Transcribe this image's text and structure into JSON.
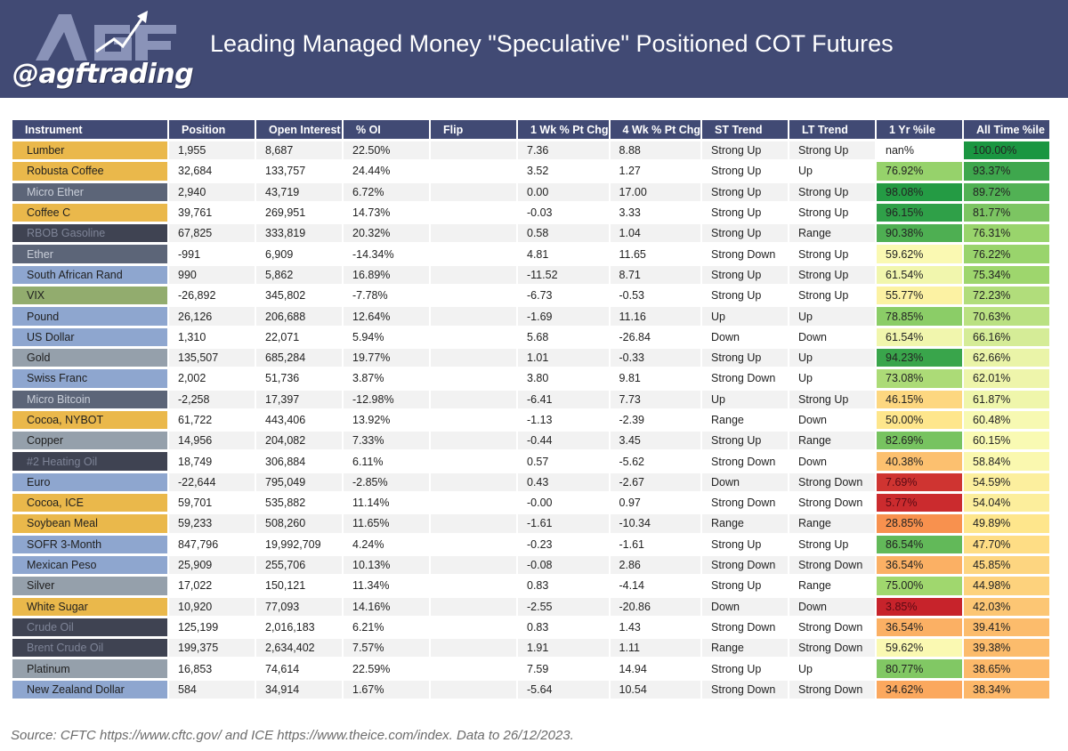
{
  "header": {
    "logo_text": "@agftrading",
    "logo_letters": "AGF",
    "title": "Leading Managed Money \"Speculative\" Positioned COT Futures"
  },
  "colors": {
    "header_bg": "#414a74",
    "category": {
      "orange": "#eab84b",
      "slate": "#5c6578",
      "dark": "#3f4352",
      "blue": "#8ea6cf",
      "green": "#92ac6e",
      "gray": "#95a0ab"
    }
  },
  "table": {
    "columns": [
      "Instrument",
      "Position",
      "Open Interest",
      "% OI",
      "Flip",
      "1 Wk % Pt Chg",
      "4 Wk % Pt Chg",
      "ST Trend",
      "LT Trend",
      "1 Yr %ile",
      "All Time %ile"
    ],
    "rows": [
      {
        "instrument": "Lumber",
        "cat": "orange",
        "position": "1,955",
        "oi": "8,687",
        "pct_oi": "22.50%",
        "flip": "",
        "wk1": "7.36",
        "wk4": "8.88",
        "st": "Strong Up",
        "lt": "Strong Up",
        "yr": "nan%",
        "at": "100.00%"
      },
      {
        "instrument": "Robusta Coffee",
        "cat": "orange",
        "position": "32,684",
        "oi": "133,757",
        "pct_oi": "24.44%",
        "flip": "",
        "wk1": "3.52",
        "wk4": "1.27",
        "st": "Strong Up",
        "lt": "Up",
        "yr": "76.92%",
        "at": "93.37%"
      },
      {
        "instrument": "Micro Ether",
        "cat": "slate",
        "position": "2,940",
        "oi": "43,719",
        "pct_oi": "6.72%",
        "flip": "",
        "wk1": "0.00",
        "wk4": "17.00",
        "st": "Strong Up",
        "lt": "Strong Up",
        "yr": "98.08%",
        "at": "89.72%"
      },
      {
        "instrument": "Coffee C",
        "cat": "orange",
        "position": "39,761",
        "oi": "269,951",
        "pct_oi": "14.73%",
        "flip": "",
        "wk1": "-0.03",
        "wk4": "3.33",
        "st": "Strong Up",
        "lt": "Strong Up",
        "yr": "96.15%",
        "at": "81.77%"
      },
      {
        "instrument": "RBOB Gasoline",
        "cat": "dark",
        "position": "67,825",
        "oi": "333,819",
        "pct_oi": "20.32%",
        "flip": "",
        "wk1": "0.58",
        "wk4": "1.04",
        "st": "Strong Up",
        "lt": "Range",
        "yr": "90.38%",
        "at": "76.31%"
      },
      {
        "instrument": "Ether",
        "cat": "slate",
        "position": "-991",
        "oi": "6,909",
        "pct_oi": "-14.34%",
        "flip": "",
        "wk1": "4.81",
        "wk4": "11.65",
        "st": "Strong Down",
        "lt": "Strong Up",
        "yr": "59.62%",
        "at": "76.22%"
      },
      {
        "instrument": "South African Rand",
        "cat": "blue",
        "position": "990",
        "oi": "5,862",
        "pct_oi": "16.89%",
        "flip": "",
        "wk1": "-11.52",
        "wk4": "8.71",
        "st": "Strong Up",
        "lt": "Strong Up",
        "yr": "61.54%",
        "at": "75.34%"
      },
      {
        "instrument": "VIX",
        "cat": "green",
        "position": "-26,892",
        "oi": "345,802",
        "pct_oi": "-7.78%",
        "flip": "",
        "wk1": "-6.73",
        "wk4": "-0.53",
        "st": "Strong Up",
        "lt": "Strong Up",
        "yr": "55.77%",
        "at": "72.23%"
      },
      {
        "instrument": "Pound",
        "cat": "blue",
        "position": "26,126",
        "oi": "206,688",
        "pct_oi": "12.64%",
        "flip": "",
        "wk1": "-1.69",
        "wk4": "11.16",
        "st": "Up",
        "lt": "Up",
        "yr": "78.85%",
        "at": "70.63%"
      },
      {
        "instrument": "US Dollar",
        "cat": "blue",
        "position": "1,310",
        "oi": "22,071",
        "pct_oi": "5.94%",
        "flip": "",
        "wk1": "5.68",
        "wk4": "-26.84",
        "st": "Down",
        "lt": "Down",
        "yr": "61.54%",
        "at": "66.16%"
      },
      {
        "instrument": "Gold",
        "cat": "gray",
        "position": "135,507",
        "oi": "685,284",
        "pct_oi": "19.77%",
        "flip": "",
        "wk1": "1.01",
        "wk4": "-0.33",
        "st": "Strong Up",
        "lt": "Up",
        "yr": "94.23%",
        "at": "62.66%"
      },
      {
        "instrument": "Swiss Franc",
        "cat": "blue",
        "position": "2,002",
        "oi": "51,736",
        "pct_oi": "3.87%",
        "flip": "",
        "wk1": "3.80",
        "wk4": "9.81",
        "st": "Strong Down",
        "lt": "Up",
        "yr": "73.08%",
        "at": "62.01%"
      },
      {
        "instrument": "Micro Bitcoin",
        "cat": "slate",
        "position": "-2,258",
        "oi": "17,397",
        "pct_oi": "-12.98%",
        "flip": "",
        "wk1": "-6.41",
        "wk4": "7.73",
        "st": "Up",
        "lt": "Strong Up",
        "yr": "46.15%",
        "at": "61.87%"
      },
      {
        "instrument": "Cocoa, NYBOT",
        "cat": "orange",
        "position": "61,722",
        "oi": "443,406",
        "pct_oi": "13.92%",
        "flip": "",
        "wk1": "-1.13",
        "wk4": "-2.39",
        "st": "Range",
        "lt": "Down",
        "yr": "50.00%",
        "at": "60.48%"
      },
      {
        "instrument": "Copper",
        "cat": "gray",
        "position": "14,956",
        "oi": "204,082",
        "pct_oi": "7.33%",
        "flip": "",
        "wk1": "-0.44",
        "wk4": "3.45",
        "st": "Strong Up",
        "lt": "Range",
        "yr": "82.69%",
        "at": "60.15%"
      },
      {
        "instrument": "#2 Heating Oil",
        "cat": "dark",
        "position": "18,749",
        "oi": "306,884",
        "pct_oi": "6.11%",
        "flip": "",
        "wk1": "0.57",
        "wk4": "-5.62",
        "st": "Strong Down",
        "lt": "Down",
        "yr": "40.38%",
        "at": "58.84%"
      },
      {
        "instrument": "Euro",
        "cat": "blue",
        "position": "-22,644",
        "oi": "795,049",
        "pct_oi": "-2.85%",
        "flip": "",
        "wk1": "0.43",
        "wk4": "-2.67",
        "st": "Down",
        "lt": "Strong Down",
        "yr": "7.69%",
        "at": "54.59%"
      },
      {
        "instrument": "Cocoa, ICE",
        "cat": "orange",
        "position": "59,701",
        "oi": "535,882",
        "pct_oi": "11.14%",
        "flip": "",
        "wk1": "-0.00",
        "wk4": "0.97",
        "st": "Strong Down",
        "lt": "Strong Down",
        "yr": "5.77%",
        "at": "54.04%"
      },
      {
        "instrument": "Soybean Meal",
        "cat": "orange",
        "position": "59,233",
        "oi": "508,260",
        "pct_oi": "11.65%",
        "flip": "",
        "wk1": "-1.61",
        "wk4": "-10.34",
        "st": "Range",
        "lt": "Range",
        "yr": "28.85%",
        "at": "49.89%"
      },
      {
        "instrument": "SOFR 3-Month",
        "cat": "blue",
        "position": "847,796",
        "oi": "19,992,709",
        "pct_oi": "4.24%",
        "flip": "",
        "wk1": "-0.23",
        "wk4": "-1.61",
        "st": "Strong Up",
        "lt": "Strong Up",
        "yr": "86.54%",
        "at": "47.70%"
      },
      {
        "instrument": "Mexican Peso",
        "cat": "blue",
        "position": "25,909",
        "oi": "255,706",
        "pct_oi": "10.13%",
        "flip": "",
        "wk1": "-0.08",
        "wk4": "2.86",
        "st": "Strong Down",
        "lt": "Strong Down",
        "yr": "36.54%",
        "at": "45.85%"
      },
      {
        "instrument": "Silver",
        "cat": "gray",
        "position": "17,022",
        "oi": "150,121",
        "pct_oi": "11.34%",
        "flip": "",
        "wk1": "0.83",
        "wk4": "-4.14",
        "st": "Strong Up",
        "lt": "Range",
        "yr": "75.00%",
        "at": "44.98%"
      },
      {
        "instrument": "White Sugar",
        "cat": "orange",
        "position": "10,920",
        "oi": "77,093",
        "pct_oi": "14.16%",
        "flip": "",
        "wk1": "-2.55",
        "wk4": "-20.86",
        "st": "Down",
        "lt": "Down",
        "yr": "3.85%",
        "at": "42.03%"
      },
      {
        "instrument": "Crude Oil",
        "cat": "dark",
        "position": "125,199",
        "oi": "2,016,183",
        "pct_oi": "6.21%",
        "flip": "",
        "wk1": "0.83",
        "wk4": "1.43",
        "st": "Strong Down",
        "lt": "Strong Down",
        "yr": "36.54%",
        "at": "39.41%"
      },
      {
        "instrument": "Brent Crude Oil",
        "cat": "dark",
        "position": "199,375",
        "oi": "2,634,402",
        "pct_oi": "7.57%",
        "flip": "",
        "wk1": "1.91",
        "wk4": "1.11",
        "st": "Range",
        "lt": "Strong Down",
        "yr": "59.62%",
        "at": "39.38%"
      },
      {
        "instrument": "Platinum",
        "cat": "gray",
        "position": "16,853",
        "oi": "74,614",
        "pct_oi": "22.59%",
        "flip": "",
        "wk1": "7.59",
        "wk4": "14.94",
        "st": "Strong Up",
        "lt": "Up",
        "yr": "80.77%",
        "at": "38.65%"
      },
      {
        "instrument": "New Zealand Dollar",
        "cat": "blue",
        "position": "584",
        "oi": "34,914",
        "pct_oi": "1.67%",
        "flip": "",
        "wk1": "-5.64",
        "wk4": "10.54",
        "st": "Strong Down",
        "lt": "Strong Down",
        "yr": "34.62%",
        "at": "38.34%"
      }
    ]
  },
  "footer": {
    "source": "Source: CFTC https://www.cftc.gov/ and ICE https://www.theice.com/index.  Data to 26/12/2023."
  }
}
